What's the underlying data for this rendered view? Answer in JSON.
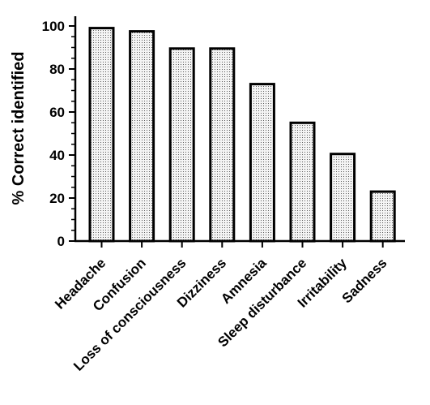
{
  "chart_data": {
    "type": "bar",
    "ylabel": "% Correct identified",
    "xlabel": "",
    "ylim": [
      0,
      100
    ],
    "yticks": [
      0,
      20,
      40,
      60,
      80,
      100
    ],
    "categories": [
      "Headache",
      "Confusion",
      "Loss of consciousness",
      "Dizziness",
      "Amnesia",
      "Sleep disturbance",
      "Irritability",
      "Sadness"
    ],
    "values": [
      99,
      97.5,
      89.5,
      89.5,
      73,
      55,
      40.5,
      23
    ],
    "bar_fill": "dotted light grey",
    "grid": false,
    "legend": "none"
  }
}
